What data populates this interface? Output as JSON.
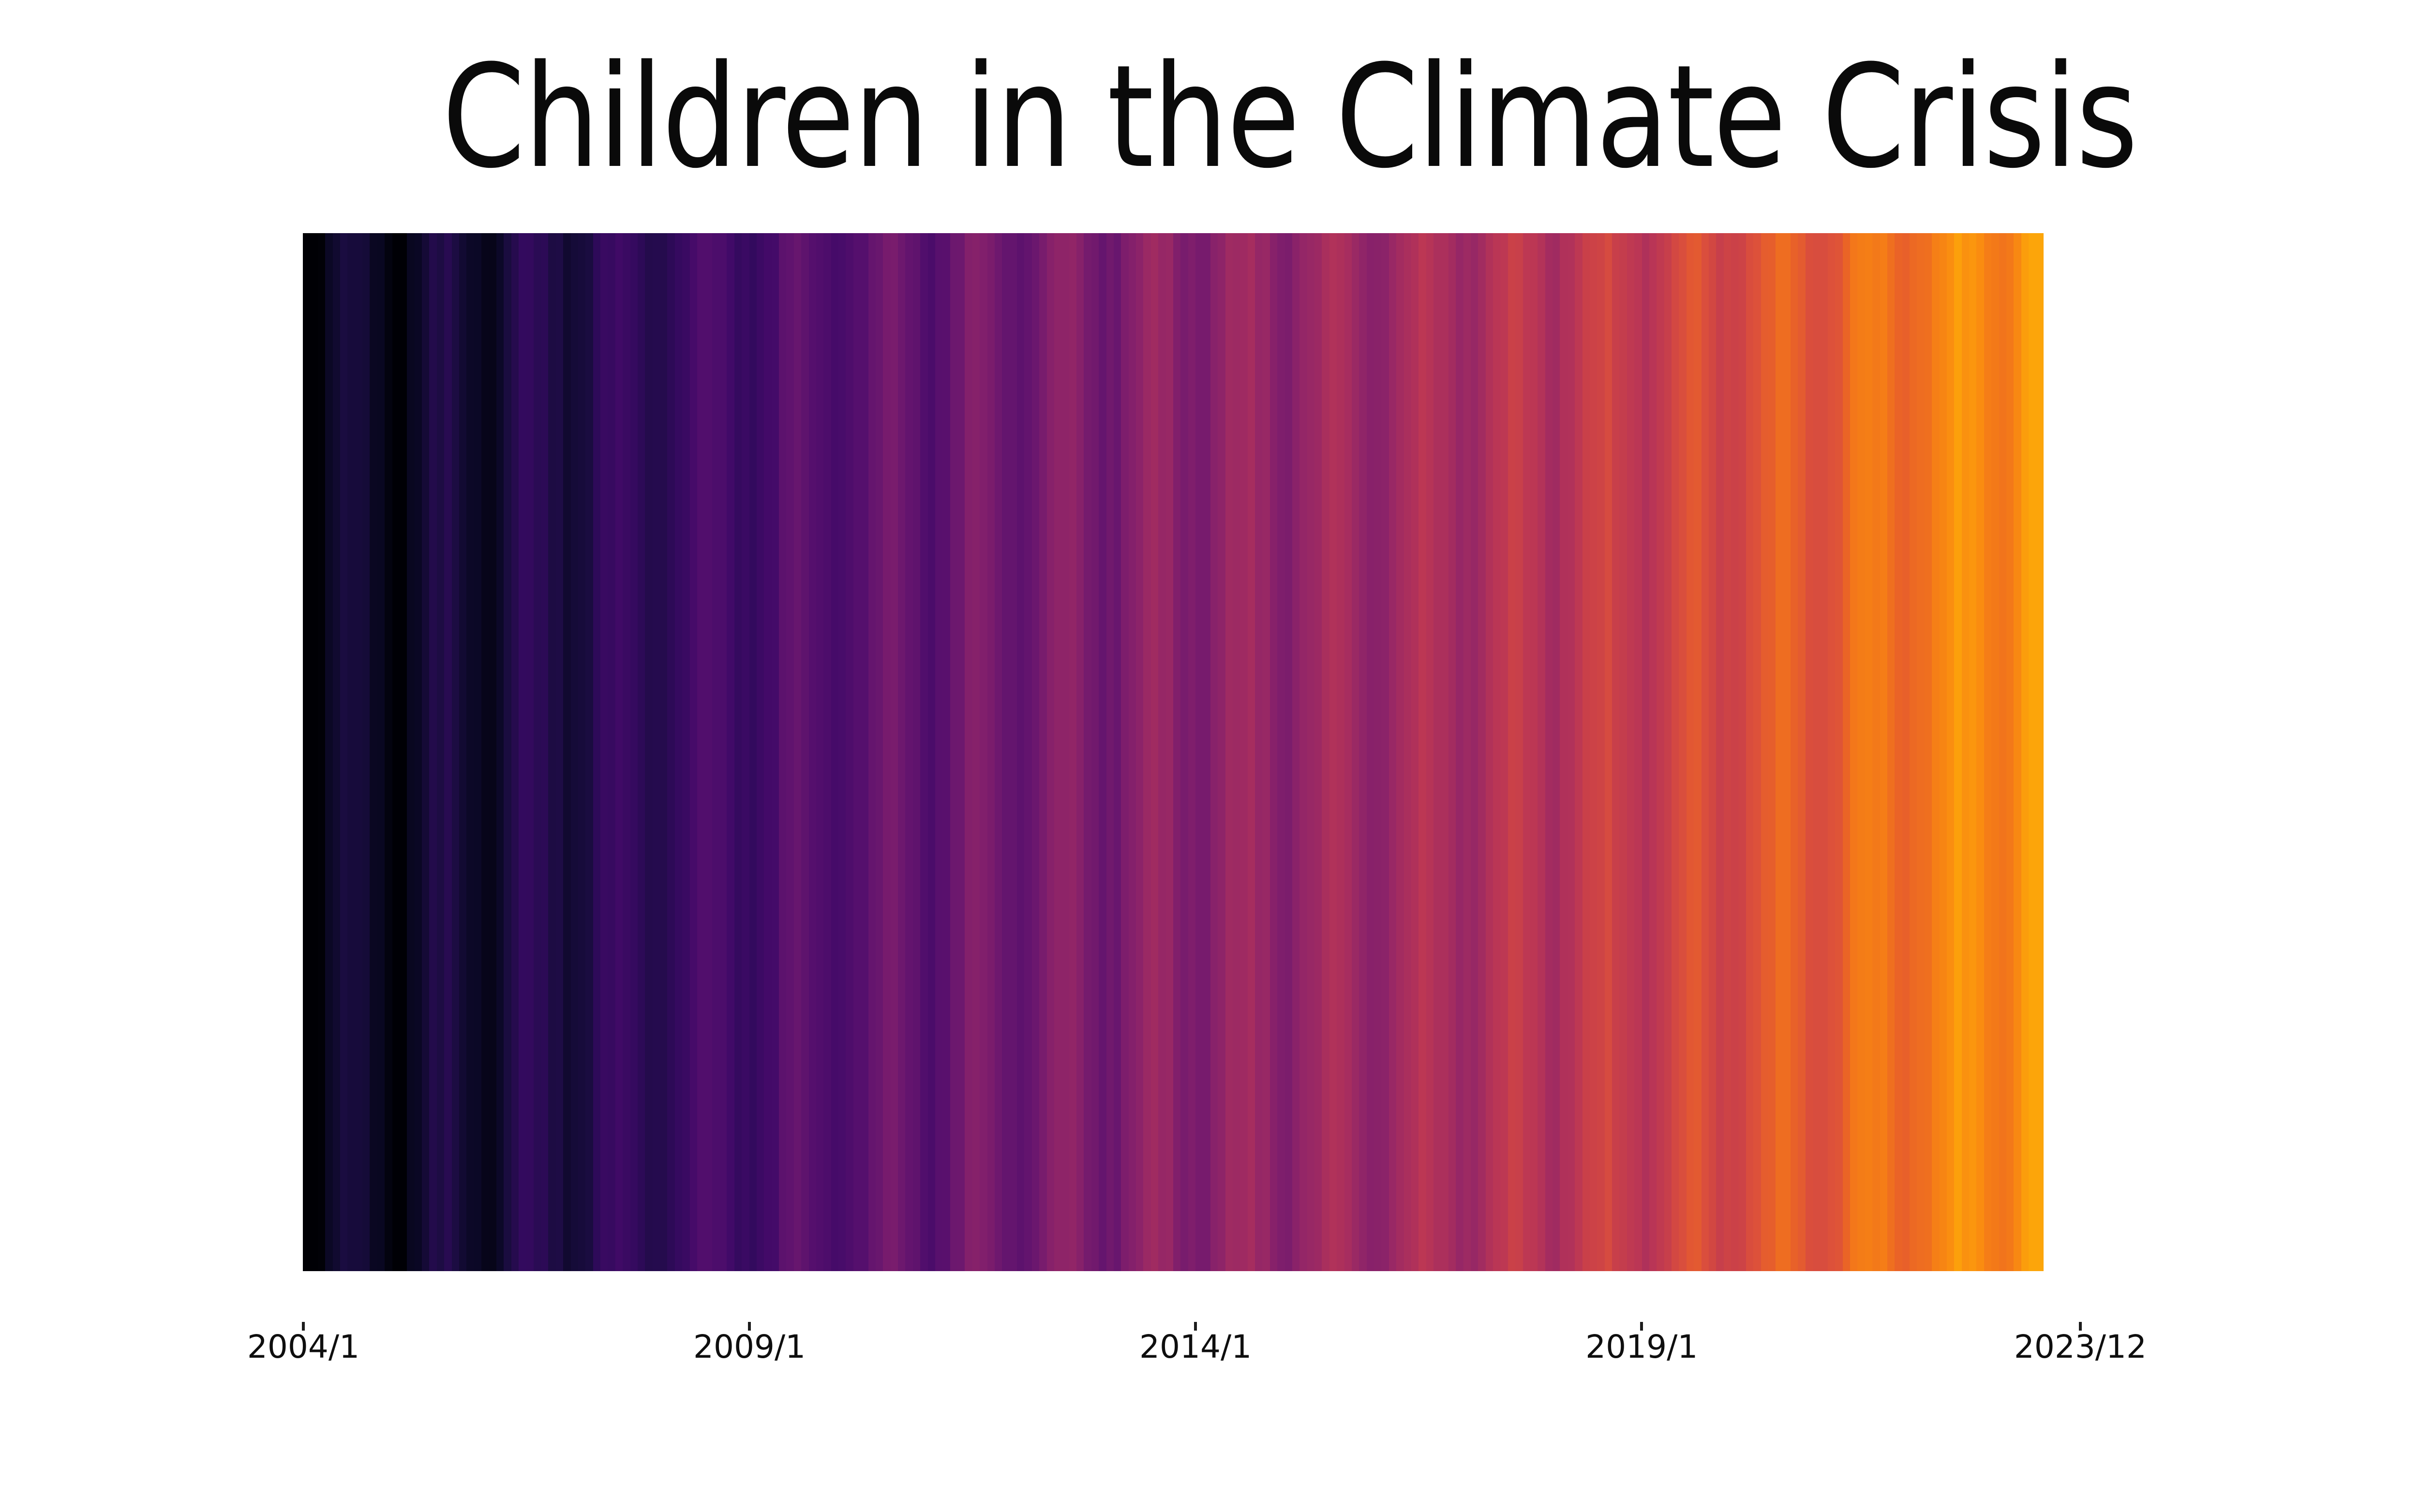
{
  "page": {
    "background": "#ffffff"
  },
  "title": {
    "text": "Children in the Climate Crisis",
    "color": "#0a0a0a"
  },
  "axis": {
    "tick_color": "#1c1c1c",
    "label_color": "#0e0e0e"
  },
  "chart_data": {
    "type": "heatmap",
    "subtype": "warming-stripes-monthly",
    "title": "Children in the Climate Crisis",
    "period_start": "2004/1",
    "period_end_axis": "2023/12",
    "axis_months_span": 240,
    "data_months": 234,
    "grid": false,
    "legend": false,
    "xticks": [
      {
        "label": "2004/1",
        "month": 0
      },
      {
        "label": "2009/1",
        "month": 60
      },
      {
        "label": "2014/1",
        "month": 120
      },
      {
        "label": "2019/1",
        "month": 180
      },
      {
        "label": "2023/12",
        "month": 239
      }
    ],
    "trend_anchors": [
      [
        0,
        0.03
      ],
      [
        12,
        0.055
      ],
      [
        24,
        0.085
      ],
      [
        36,
        0.125
      ],
      [
        48,
        0.165
      ],
      [
        60,
        0.21
      ],
      [
        72,
        0.255
      ],
      [
        84,
        0.29
      ],
      [
        96,
        0.32
      ],
      [
        108,
        0.35
      ],
      [
        120,
        0.38
      ],
      [
        132,
        0.405
      ],
      [
        144,
        0.43
      ],
      [
        156,
        0.46
      ],
      [
        168,
        0.495
      ],
      [
        180,
        0.535
      ],
      [
        192,
        0.585
      ],
      [
        204,
        0.64
      ],
      [
        216,
        0.7
      ],
      [
        228,
        0.755
      ],
      [
        233,
        0.785
      ]
    ],
    "seasonal_amplitude": 0.05,
    "noise_amplitude": 0.018,
    "value_clamp": [
      0.002,
      0.8
    ],
    "colormap": {
      "name": "inferno",
      "stops": [
        [
          0.0,
          "#000004"
        ],
        [
          0.05,
          "#0b0826"
        ],
        [
          0.1,
          "#1b0c41"
        ],
        [
          0.15,
          "#310a5c"
        ],
        [
          0.2,
          "#420a68"
        ],
        [
          0.25,
          "#550f6d"
        ],
        [
          0.3,
          "#6a176e"
        ],
        [
          0.35,
          "#7f1e6c"
        ],
        [
          0.4,
          "#932667"
        ],
        [
          0.45,
          "#a82e5e"
        ],
        [
          0.5,
          "#bc3754"
        ],
        [
          0.55,
          "#cd4346"
        ],
        [
          0.6,
          "#dd513a"
        ],
        [
          0.65,
          "#e96228"
        ],
        [
          0.7,
          "#f37819"
        ],
        [
          0.75,
          "#fa8d10"
        ],
        [
          0.8,
          "#fca50a"
        ],
        [
          0.85,
          "#fcc127"
        ]
      ]
    },
    "sampled_stripe_colors": {
      "2004": "#06030f",
      "2008": "#3a0f64",
      "2013": "#7b2277",
      "2018": "#cc4a4a",
      "2021": "#ee7314",
      "2023": "#f9a208"
    }
  }
}
